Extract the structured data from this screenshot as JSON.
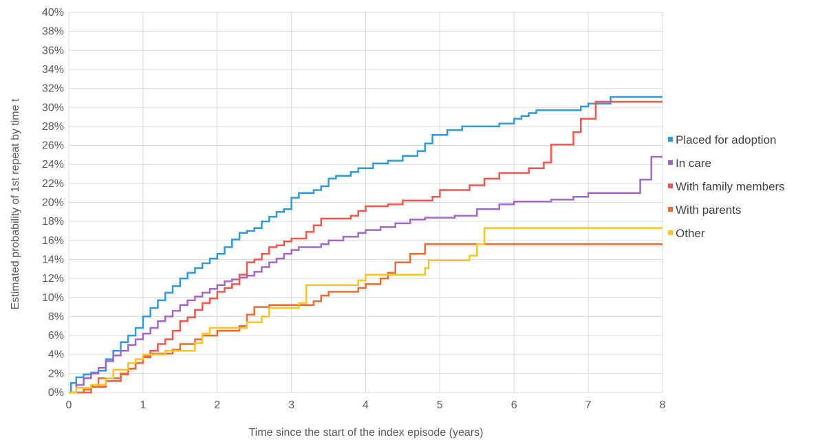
{
  "chart_data": {
    "type": "line",
    "step": true,
    "title": "",
    "xlabel": "Time since the start of the index episode (years)",
    "ylabel": "Estimated probability of 1st repeat by time t",
    "xlim": [
      0,
      8
    ],
    "ylim": [
      0,
      40
    ],
    "xticks": [
      "0",
      "1",
      "2",
      "3",
      "4",
      "5",
      "6",
      "7",
      "8"
    ],
    "yticks": [
      "0%",
      "2%",
      "4%",
      "6%",
      "8%",
      "10%",
      "12%",
      "14%",
      "16%",
      "18%",
      "20%",
      "22%",
      "24%",
      "26%",
      "28%",
      "30%",
      "32%",
      "34%",
      "36%",
      "38%",
      "40%"
    ],
    "grid": true,
    "legend_position": "right",
    "series": [
      {
        "name": "Placed for adoption",
        "color": "#2E9BE0",
        "points": [
          [
            0,
            0
          ],
          [
            0.03,
            1
          ],
          [
            0.1,
            1.6
          ],
          [
            0.2,
            1.9
          ],
          [
            0.3,
            2.1
          ],
          [
            0.4,
            2.3
          ],
          [
            0.5,
            3.5
          ],
          [
            0.6,
            4.4
          ],
          [
            0.7,
            5.3
          ],
          [
            0.8,
            6
          ],
          [
            0.9,
            6.8
          ],
          [
            1,
            8
          ],
          [
            1.1,
            8.9
          ],
          [
            1.2,
            9.7
          ],
          [
            1.3,
            10.5
          ],
          [
            1.4,
            11.2
          ],
          [
            1.5,
            12
          ],
          [
            1.6,
            12.6
          ],
          [
            1.7,
            13.1
          ],
          [
            1.8,
            13.6
          ],
          [
            1.9,
            14.1
          ],
          [
            2,
            14.6
          ],
          [
            2.1,
            15.3
          ],
          [
            2.2,
            16.1
          ],
          [
            2.3,
            16.8
          ],
          [
            2.4,
            17
          ],
          [
            2.5,
            17.3
          ],
          [
            2.6,
            18
          ],
          [
            2.7,
            18.5
          ],
          [
            2.8,
            19
          ],
          [
            2.9,
            19.3
          ],
          [
            3,
            20.5
          ],
          [
            3.1,
            21
          ],
          [
            3.3,
            21.3
          ],
          [
            3.4,
            21.7
          ],
          [
            3.5,
            22.5
          ],
          [
            3.6,
            22.8
          ],
          [
            3.8,
            23.2
          ],
          [
            3.9,
            23.6
          ],
          [
            4.1,
            24.1
          ],
          [
            4.3,
            24.4
          ],
          [
            4.5,
            24.9
          ],
          [
            4.7,
            25.4
          ],
          [
            4.8,
            26.2
          ],
          [
            4.9,
            27.1
          ],
          [
            5.1,
            27.6
          ],
          [
            5.3,
            28
          ],
          [
            5.8,
            28.3
          ],
          [
            6,
            28.8
          ],
          [
            6.1,
            29.1
          ],
          [
            6.2,
            29.4
          ],
          [
            6.3,
            29.7
          ],
          [
            6.9,
            30.1
          ],
          [
            7,
            30.4
          ],
          [
            7.3,
            31.1
          ],
          [
            8,
            31.1
          ]
        ]
      },
      {
        "name": "In care",
        "color": "#A566CC",
        "points": [
          [
            0,
            0
          ],
          [
            0.1,
            0.8
          ],
          [
            0.2,
            1.5
          ],
          [
            0.3,
            2
          ],
          [
            0.4,
            2.6
          ],
          [
            0.5,
            3.3
          ],
          [
            0.6,
            3.9
          ],
          [
            0.7,
            4.4
          ],
          [
            0.8,
            5
          ],
          [
            0.9,
            5.6
          ],
          [
            1,
            6.2
          ],
          [
            1.1,
            6.8
          ],
          [
            1.2,
            7.5
          ],
          [
            1.3,
            8
          ],
          [
            1.4,
            8.6
          ],
          [
            1.5,
            9.2
          ],
          [
            1.6,
            9.7
          ],
          [
            1.7,
            10.1
          ],
          [
            1.8,
            10.5
          ],
          [
            1.9,
            10.9
          ],
          [
            2,
            11.3
          ],
          [
            2.1,
            11.7
          ],
          [
            2.2,
            11.9
          ],
          [
            2.3,
            12.1
          ],
          [
            2.4,
            12.3
          ],
          [
            2.5,
            12.7
          ],
          [
            2.6,
            13.2
          ],
          [
            2.7,
            13.7
          ],
          [
            2.8,
            14.1
          ],
          [
            2.9,
            14.6
          ],
          [
            3,
            15
          ],
          [
            3.1,
            15.3
          ],
          [
            3.4,
            15.6
          ],
          [
            3.5,
            16
          ],
          [
            3.7,
            16.4
          ],
          [
            3.9,
            16.8
          ],
          [
            4,
            17.1
          ],
          [
            4.2,
            17.4
          ],
          [
            4.4,
            17.8
          ],
          [
            4.6,
            18.2
          ],
          [
            4.8,
            18.4
          ],
          [
            5.2,
            18.6
          ],
          [
            5.5,
            19.3
          ],
          [
            5.8,
            19.8
          ],
          [
            6,
            20.1
          ],
          [
            6.5,
            20.3
          ],
          [
            6.8,
            20.6
          ],
          [
            7,
            21
          ],
          [
            7.6,
            21
          ],
          [
            7.7,
            22.4
          ],
          [
            7.85,
            24.8
          ],
          [
            8,
            24.8
          ]
        ]
      },
      {
        "name": "With family members",
        "color": "#F4564E",
        "points": [
          [
            0,
            0
          ],
          [
            0.3,
            0.6
          ],
          [
            0.5,
            1.2
          ],
          [
            0.7,
            1.9
          ],
          [
            0.8,
            2.5
          ],
          [
            0.9,
            3.1
          ],
          [
            1,
            3.8
          ],
          [
            1.1,
            4.4
          ],
          [
            1.2,
            5.1
          ],
          [
            1.3,
            5.6
          ],
          [
            1.4,
            6.5
          ],
          [
            1.5,
            7.5
          ],
          [
            1.6,
            7.9
          ],
          [
            1.7,
            8.7
          ],
          [
            1.8,
            9.4
          ],
          [
            1.9,
            9.9
          ],
          [
            2,
            10.6
          ],
          [
            2.1,
            11
          ],
          [
            2.2,
            11.4
          ],
          [
            2.3,
            12.4
          ],
          [
            2.4,
            13.7
          ],
          [
            2.5,
            14
          ],
          [
            2.6,
            14.6
          ],
          [
            2.7,
            15.3
          ],
          [
            2.8,
            15.5
          ],
          [
            2.9,
            15.9
          ],
          [
            3,
            16.2
          ],
          [
            3.2,
            16.9
          ],
          [
            3.3,
            17.6
          ],
          [
            3.4,
            18.3
          ],
          [
            3.8,
            18.6
          ],
          [
            3.9,
            19.1
          ],
          [
            4,
            19.6
          ],
          [
            4.3,
            19.8
          ],
          [
            4.5,
            20.2
          ],
          [
            4.9,
            20.6
          ],
          [
            5,
            21.3
          ],
          [
            5.4,
            21.8
          ],
          [
            5.6,
            22.5
          ],
          [
            5.8,
            23.1
          ],
          [
            6.2,
            23.6
          ],
          [
            6.4,
            24.2
          ],
          [
            6.5,
            26.1
          ],
          [
            6.8,
            27.4
          ],
          [
            6.9,
            28.8
          ],
          [
            7.1,
            30.6
          ],
          [
            8,
            30.6
          ]
        ]
      },
      {
        "name": "With parents",
        "color": "#ED6B2F",
        "points": [
          [
            0,
            0
          ],
          [
            0.2,
            0.3
          ],
          [
            0.3,
            0.6
          ],
          [
            0.4,
            1.5
          ],
          [
            0.7,
            2
          ],
          [
            0.8,
            2.5
          ],
          [
            0.9,
            3.1
          ],
          [
            1,
            3.7
          ],
          [
            1.1,
            4.1
          ],
          [
            1.4,
            4.5
          ],
          [
            1.5,
            5.1
          ],
          [
            1.7,
            5.6
          ],
          [
            1.8,
            6
          ],
          [
            2,
            6.5
          ],
          [
            2.3,
            7
          ],
          [
            2.4,
            8.2
          ],
          [
            2.5,
            9
          ],
          [
            2.7,
            9.2
          ],
          [
            3.3,
            9.6
          ],
          [
            3.4,
            10.2
          ],
          [
            3.5,
            10.6
          ],
          [
            3.9,
            11
          ],
          [
            4,
            11.4
          ],
          [
            4.2,
            12
          ],
          [
            4.3,
            12.6
          ],
          [
            4.4,
            13.7
          ],
          [
            4.6,
            14.6
          ],
          [
            4.8,
            15.6
          ],
          [
            8,
            15.6
          ]
        ]
      },
      {
        "name": "Other",
        "color": "#FFC422",
        "points": [
          [
            0,
            0
          ],
          [
            0.1,
            0.5
          ],
          [
            0.3,
            0.8
          ],
          [
            0.5,
            1.5
          ],
          [
            0.6,
            2.4
          ],
          [
            0.8,
            3.1
          ],
          [
            0.9,
            3.5
          ],
          [
            1,
            4
          ],
          [
            1.3,
            4.4
          ],
          [
            1.7,
            5.2
          ],
          [
            1.8,
            6.2
          ],
          [
            1.9,
            6.8
          ],
          [
            2.4,
            7.4
          ],
          [
            2.6,
            8
          ],
          [
            2.7,
            8.9
          ],
          [
            3.1,
            9.4
          ],
          [
            3.2,
            11.3
          ],
          [
            3.9,
            11.8
          ],
          [
            4,
            12.4
          ],
          [
            4.8,
            13.1
          ],
          [
            4.85,
            13.9
          ],
          [
            5.4,
            14.4
          ],
          [
            5.5,
            15.6
          ],
          [
            5.6,
            17.3
          ],
          [
            8,
            17.3
          ]
        ]
      }
    ]
  }
}
